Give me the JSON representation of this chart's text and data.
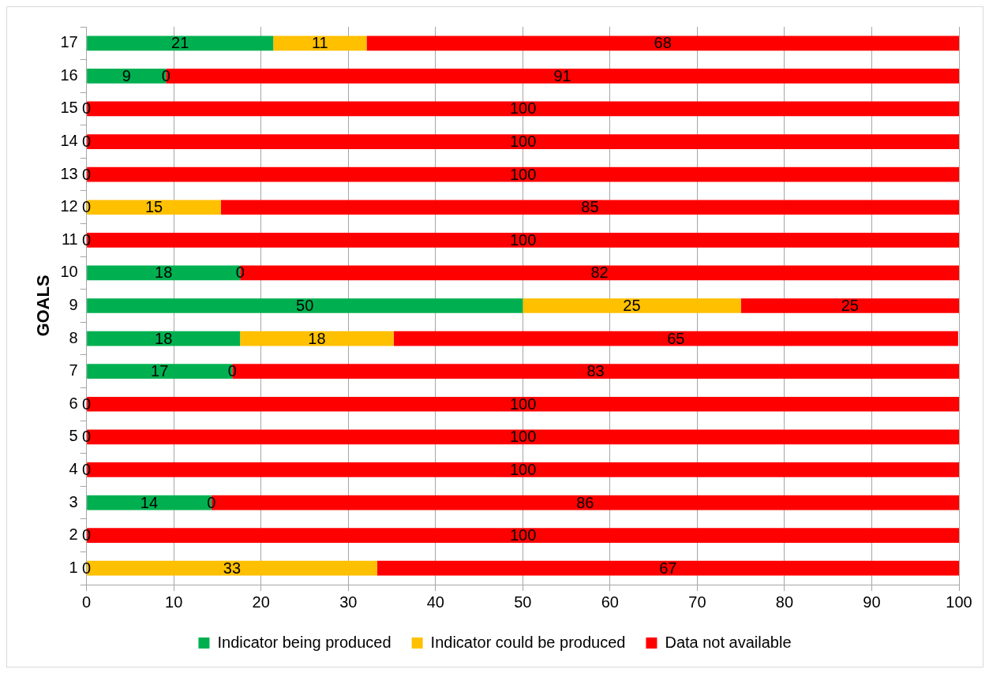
{
  "chart_data": {
    "type": "bar",
    "orientation": "horizontal",
    "stacked": true,
    "ylabel": "GOALS",
    "categories": [
      "17",
      "16",
      "15",
      "14",
      "13",
      "12",
      "11",
      "10",
      "9",
      "8",
      "7",
      "6",
      "5",
      "4",
      "3",
      "2",
      "1"
    ],
    "series": [
      {
        "name": "Indicator being produced",
        "color": "#00b050",
        "values": [
          21.4,
          9.1,
          0,
          0,
          0,
          0,
          0,
          17.6,
          50,
          17.6,
          16.7,
          0,
          0,
          0,
          14.3,
          0,
          0
        ],
        "value_labels": [
          "21",
          "9",
          null,
          null,
          null,
          null,
          null,
          "18",
          "50",
          "18",
          "17",
          null,
          null,
          null,
          "14",
          null,
          null
        ]
      },
      {
        "name": "Indicator could be produced",
        "color": "#ffc000",
        "values": [
          10.7,
          0,
          0,
          0,
          0,
          15.4,
          0,
          0,
          25,
          17.6,
          0,
          0,
          0,
          0,
          0,
          0,
          33.3
        ],
        "value_labels": [
          "11",
          null,
          null,
          null,
          null,
          "15",
          null,
          null,
          "25",
          "18",
          null,
          null,
          null,
          null,
          null,
          null,
          "33"
        ]
      },
      {
        "name": "Data not available",
        "color": "#ff0000",
        "values": [
          67.9,
          90.9,
          100,
          100,
          100,
          84.6,
          100,
          82.4,
          25,
          64.7,
          83.3,
          100,
          100,
          100,
          85.7,
          100,
          66.7
        ],
        "value_labels": [
          "68",
          "91",
          "100",
          "100",
          "100",
          "85",
          "100",
          "82",
          "25",
          "65",
          "83",
          "100",
          "100",
          "100",
          "86",
          "100",
          "67"
        ]
      }
    ],
    "annotations": [
      {
        "text": "0",
        "x": 9.1,
        "y": "16"
      },
      {
        "text": "0",
        "x": 0,
        "y": "15"
      },
      {
        "text": "0",
        "x": 0,
        "y": "14"
      },
      {
        "text": "0",
        "x": 0,
        "y": "13"
      },
      {
        "text": "0",
        "x": 0,
        "y": "12"
      },
      {
        "text": "0",
        "x": 0,
        "y": "11"
      },
      {
        "text": "0",
        "x": 17.6,
        "y": "10"
      },
      {
        "text": "0",
        "x": 16.7,
        "y": "7"
      },
      {
        "text": "0",
        "x": 0,
        "y": "6"
      },
      {
        "text": "0",
        "x": 0,
        "y": "5"
      },
      {
        "text": "0",
        "x": 0,
        "y": "4"
      },
      {
        "text": "0",
        "x": 14.3,
        "y": "3"
      },
      {
        "text": "0",
        "x": 0,
        "y": "2"
      },
      {
        "text": "0",
        "x": 0,
        "y": "1"
      }
    ],
    "xlim": [
      0,
      100
    ],
    "xticks": [
      0,
      10,
      20,
      30,
      40,
      50,
      60,
      70,
      80,
      90,
      100
    ],
    "grid": "x",
    "legend": "bottom"
  }
}
